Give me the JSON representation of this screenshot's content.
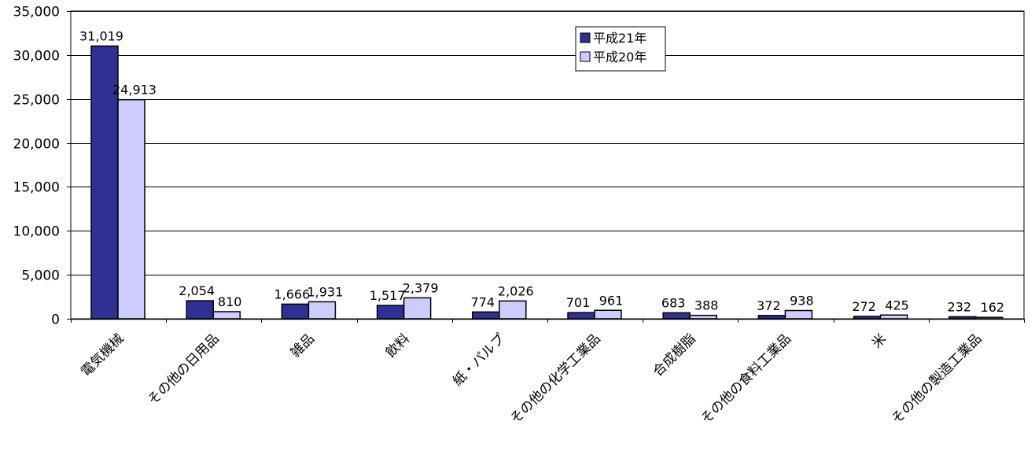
{
  "chart_data": {
    "type": "bar",
    "categories": [
      "電気機械",
      "その他の日用品",
      "雑品",
      "飲料",
      "紙・パルプ",
      "その他の化学工業品",
      "合成樹脂",
      "その他の食料工業品",
      "米",
      "その他の製造工業品"
    ],
    "series": [
      {
        "name": "平成21年",
        "values": [
          31019,
          2054,
          1666,
          1517,
          774,
          701,
          683,
          372,
          272,
          232
        ],
        "labels": [
          "31,019",
          "2,054",
          "1,666",
          "1,517",
          "774",
          "701",
          "683",
          "372",
          "272",
          "232"
        ],
        "color": "#2e3192"
      },
      {
        "name": "平成20年",
        "values": [
          24913,
          810,
          1931,
          2379,
          2026,
          961,
          388,
          938,
          425,
          162
        ],
        "labels": [
          "24,913",
          "810",
          "1,931",
          "2,379",
          "2,026",
          "961",
          "388",
          "938",
          "425",
          "162"
        ],
        "color": "#ccccff"
      }
    ],
    "yticks": [
      0,
      5000,
      10000,
      15000,
      20000,
      25000,
      30000,
      35000
    ],
    "ytick_labels": [
      "0",
      "5,000",
      "10,000",
      "15,000",
      "20,000",
      "25,000",
      "30,000",
      "35,000"
    ],
    "ylim": [
      0,
      35000
    ],
    "grid": true,
    "legend_position": "top-center",
    "bar_outline_color": "#000000"
  }
}
